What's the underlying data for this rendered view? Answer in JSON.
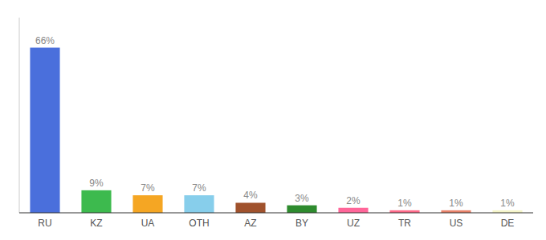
{
  "chart_data": {
    "type": "bar",
    "categories": [
      "RU",
      "KZ",
      "UA",
      "OTH",
      "AZ",
      "BY",
      "UZ",
      "TR",
      "US",
      "DE"
    ],
    "values": [
      66,
      9,
      7,
      7,
      4,
      3,
      2,
      1,
      1,
      1
    ],
    "value_labels": [
      "66%",
      "9%",
      "7%",
      "7%",
      "4%",
      "3%",
      "2%",
      "1%",
      "1%",
      "1%"
    ],
    "colors": [
      "#4a6fdc",
      "#3dba4e",
      "#f5a623",
      "#87ceeb",
      "#a0522d",
      "#2e8b2e",
      "#ff6699",
      "#ff6b8a",
      "#e8826a",
      "#f5f5c8"
    ],
    "ylim": [
      0,
      78
    ],
    "grid": false,
    "data_labels": true,
    "tick_labels": "x"
  }
}
